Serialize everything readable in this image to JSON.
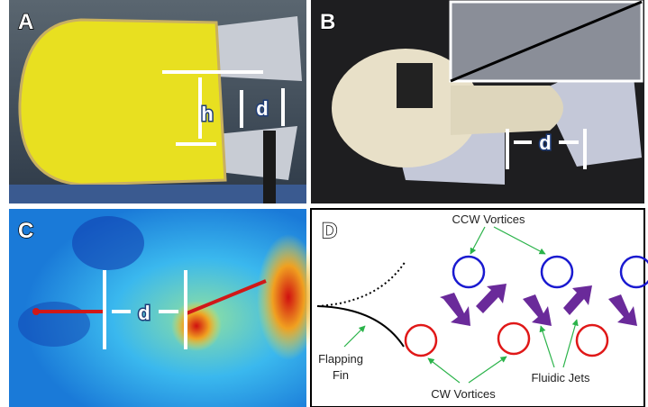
{
  "panels": [
    {
      "label": "A",
      "annotations": [
        "h",
        "d"
      ]
    },
    {
      "label": "B",
      "annotations": [
        "d"
      ]
    },
    {
      "label": "C",
      "annotations": [
        "d"
      ]
    },
    {
      "label": "D",
      "ccw": "CCW Vortices",
      "cw": "CW Vortices",
      "fin": [
        "Flapping",
        "Fin"
      ],
      "jets": "Fluidic Jets"
    }
  ]
}
